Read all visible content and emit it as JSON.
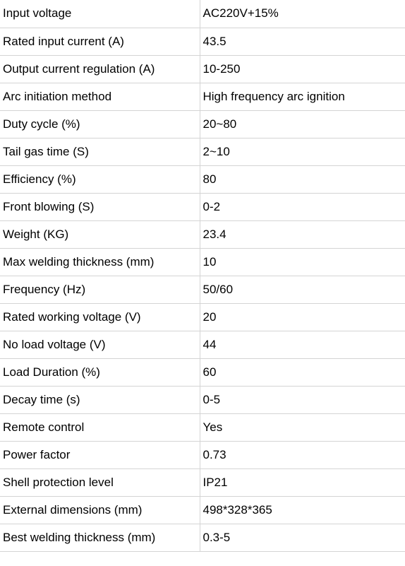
{
  "table": {
    "rows": [
      [
        "Input voltage",
        "AC220V+15%"
      ],
      [
        "Rated input current (A)",
        "43.5"
      ],
      [
        "Output current regulation (A)",
        "10-250"
      ],
      [
        "Arc initiation method",
        "High frequency arc ignition"
      ],
      [
        "Duty cycle (%)",
        "20~80"
      ],
      [
        "Tail gas time (S)",
        "2~10"
      ],
      [
        "Efficiency (%)",
        "80"
      ],
      [
        "Front blowing (S)",
        "0-2"
      ],
      [
        "Weight (KG)",
        "23.4"
      ],
      [
        "Max welding thickness (mm)",
        "10"
      ],
      [
        "Frequency (Hz)",
        "50/60"
      ],
      [
        "Rated working voltage (V)",
        "20"
      ],
      [
        "No load voltage (V)",
        "44"
      ],
      [
        "Load Duration (%)",
        "60"
      ],
      [
        "Decay time (s)",
        "0-5"
      ],
      [
        "Remote control",
        "Yes"
      ],
      [
        "Power factor",
        "0.73"
      ],
      [
        "Shell protection level",
        "IP21"
      ],
      [
        "External dimensions (mm)",
        "498*328*365"
      ],
      [
        "Best welding thickness (mm)",
        "0.3-5"
      ]
    ]
  }
}
